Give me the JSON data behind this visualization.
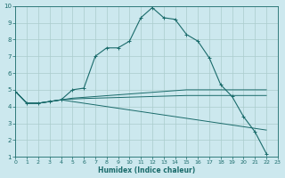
{
  "xlabel": "Humidex (Indice chaleur)",
  "xlim": [
    0,
    23
  ],
  "ylim": [
    1,
    10
  ],
  "yticks": [
    1,
    2,
    3,
    4,
    5,
    6,
    7,
    8,
    9,
    10
  ],
  "xticks": [
    0,
    1,
    2,
    3,
    4,
    5,
    6,
    7,
    8,
    9,
    10,
    11,
    12,
    13,
    14,
    15,
    16,
    17,
    18,
    19,
    20,
    21,
    22,
    23
  ],
  "bg_color": "#cce8ee",
  "grid_color": "#aacccc",
  "line_color": "#1a6b6b",
  "series0_x": [
    0,
    1,
    2,
    3,
    4,
    5,
    6,
    7,
    8,
    9,
    10,
    11,
    12,
    13,
    14,
    15,
    16,
    17,
    18,
    19,
    20,
    21,
    22
  ],
  "series0_y": [
    4.9,
    4.2,
    4.2,
    4.3,
    4.4,
    5.0,
    5.1,
    7.0,
    7.5,
    7.5,
    7.9,
    9.3,
    9.9,
    9.3,
    9.2,
    8.3,
    7.9,
    6.9,
    5.3,
    4.6,
    3.4,
    2.5,
    1.2
  ],
  "series1_x": [
    0,
    1,
    2,
    3,
    4,
    5,
    6,
    7,
    8,
    9,
    10,
    11,
    12,
    13,
    14,
    15,
    16,
    17,
    18,
    19,
    20,
    21,
    22
  ],
  "series1_y": [
    4.9,
    4.2,
    4.2,
    4.3,
    4.4,
    4.5,
    4.55,
    4.6,
    4.65,
    4.7,
    4.75,
    4.8,
    4.85,
    4.9,
    4.95,
    5.0,
    5.0,
    5.0,
    5.0,
    5.0,
    5.0,
    5.0,
    5.0
  ],
  "series2_x": [
    0,
    1,
    2,
    3,
    4,
    5,
    6,
    7,
    8,
    9,
    10,
    11,
    12,
    13,
    14,
    15,
    16,
    17,
    18,
    19,
    20,
    21,
    22
  ],
  "series2_y": [
    4.9,
    4.2,
    4.2,
    4.3,
    4.4,
    4.45,
    4.48,
    4.5,
    4.52,
    4.54,
    4.56,
    4.58,
    4.6,
    4.62,
    4.64,
    4.66,
    4.66,
    4.66,
    4.66,
    4.66,
    4.66,
    4.66,
    4.66
  ],
  "series3_x": [
    0,
    1,
    2,
    3,
    4,
    5,
    6,
    7,
    8,
    9,
    10,
    11,
    12,
    13,
    14,
    15,
    16,
    17,
    18,
    19,
    20,
    21,
    22
  ],
  "series3_y": [
    4.9,
    4.2,
    4.2,
    4.3,
    4.4,
    4.3,
    4.2,
    4.1,
    4.0,
    3.9,
    3.8,
    3.7,
    3.6,
    3.5,
    3.4,
    3.3,
    3.2,
    3.1,
    3.0,
    2.9,
    2.8,
    2.7,
    2.6
  ]
}
